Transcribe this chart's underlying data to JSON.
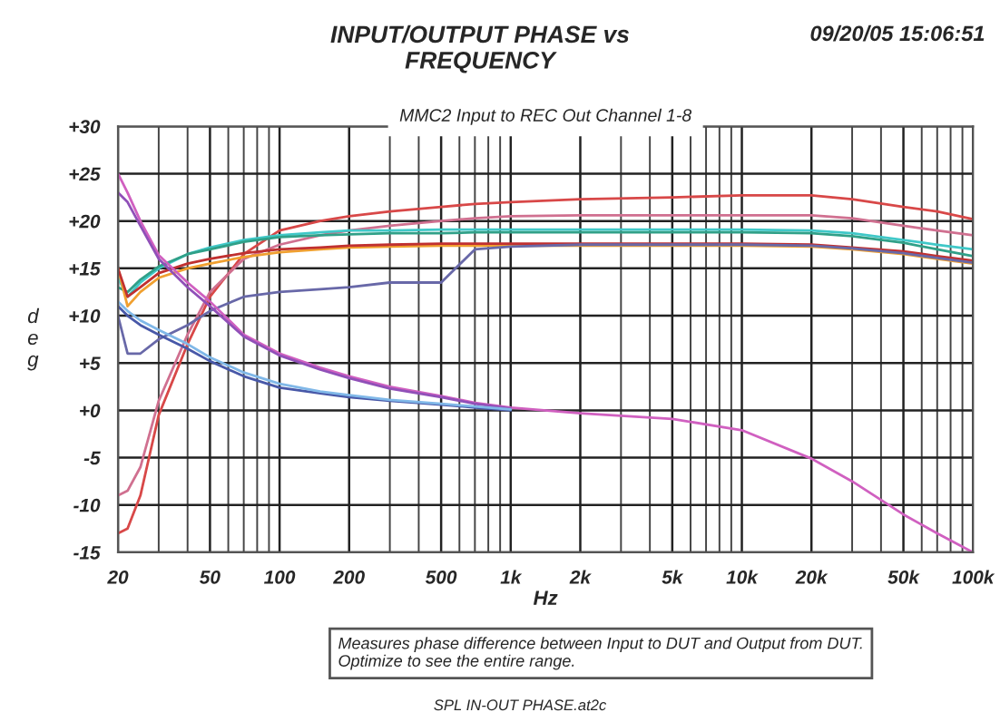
{
  "chart_data": {
    "type": "line",
    "title": "INPUT/OUTPUT PHASE vs\nFREQUENCY",
    "subtitle": "MMC2 Input to REC Out Channel 1-8",
    "xlabel": "Hz",
    "ylabel": "d\ne\ng",
    "annotations": [
      "09/20/05 15:06:51",
      "Measures phase difference between Input to DUT and Output from DUT.\nOptimize to see the entire range.",
      "SPL IN-OUT PHASE.at2c"
    ],
    "x": [
      20,
      22,
      25,
      30,
      40,
      50,
      70,
      100,
      150,
      200,
      300,
      500,
      700,
      1000,
      2000,
      5000,
      10000,
      20000,
      30000,
      50000,
      70000,
      100000
    ],
    "log": "x",
    "xlim": [
      20,
      100000
    ],
    "xticks": [
      20,
      50,
      100,
      200,
      500,
      {
        "value": 1000,
        "label": "1k"
      },
      {
        "value": 2000,
        "label": "2k"
      },
      {
        "value": 5000,
        "label": "5k"
      },
      {
        "value": 10000,
        "label": "10k"
      },
      {
        "value": 20000,
        "label": "20k"
      },
      {
        "value": 50000,
        "label": "50k"
      },
      {
        "value": 100000,
        "label": "100k"
      }
    ],
    "ylim": [
      -15,
      30
    ],
    "yticks": [
      -15,
      -10,
      -5,
      {
        "value": 0,
        "label": "+0"
      },
      {
        "value": 5,
        "label": "+5"
      },
      {
        "value": 10,
        "label": "+10"
      },
      {
        "value": 15,
        "label": "+15"
      },
      {
        "value": 20,
        "label": "+20"
      },
      {
        "value": 25,
        "label": "+25"
      },
      {
        "value": 30,
        "label": "+30"
      }
    ],
    "grid": true,
    "legend": false,
    "series": [
      {
        "color": "#d84848",
        "values": [
          -13,
          -12.5,
          -9,
          -0.5,
          7,
          12,
          16.5,
          19,
          20,
          20.5,
          21,
          21.5,
          21.8,
          22,
          22.3,
          22.5,
          22.7,
          22.7,
          22.3,
          21.5,
          21,
          20.2
        ]
      },
      {
        "color": "#d07090",
        "values": [
          -9,
          -8.5,
          -6,
          1,
          8,
          12.5,
          16,
          17.5,
          18.5,
          19,
          19.5,
          20,
          20.3,
          20.5,
          20.6,
          20.6,
          20.6,
          20.6,
          20.3,
          19.5,
          19,
          18.5
        ]
      },
      {
        "color": "#40c8c8",
        "values": [
          14,
          12,
          13.5,
          15,
          16.5,
          17.2,
          18,
          18.5,
          18.8,
          19,
          19,
          19.1,
          19.1,
          19.1,
          19.1,
          19.1,
          19.1,
          19,
          18.7,
          18,
          17.5,
          17
        ]
      },
      {
        "color": "#30a088",
        "values": [
          13,
          12.5,
          13.8,
          15.2,
          16.5,
          17,
          17.8,
          18.3,
          18.5,
          18.6,
          18.7,
          18.7,
          18.8,
          18.8,
          18.8,
          18.8,
          18.8,
          18.7,
          18.4,
          17.7,
          17,
          16.3
        ]
      },
      {
        "color": "#f0a030",
        "values": [
          15,
          11,
          12.5,
          14,
          15,
          15.5,
          16.2,
          16.7,
          17,
          17.2,
          17.3,
          17.4,
          17.4,
          17.4,
          17.4,
          17.4,
          17.4,
          17.3,
          17,
          16.5,
          16,
          15.5
        ]
      },
      {
        "color": "#c03030",
        "values": [
          15,
          12,
          13,
          14.5,
          15.5,
          16,
          16.6,
          17,
          17.2,
          17.4,
          17.5,
          17.6,
          17.6,
          17.6,
          17.6,
          17.6,
          17.6,
          17.5,
          17.2,
          16.8,
          16.3,
          15.8
        ]
      },
      {
        "color": "#6868a8",
        "values": [
          10,
          6,
          6,
          7.5,
          9,
          10.5,
          12,
          12.5,
          12.8,
          13,
          13.5,
          13.5,
          17,
          17.3,
          17.5,
          17.5,
          17.5,
          17.4,
          17.1,
          16.6,
          16.1,
          15.6
        ]
      },
      {
        "color": "#d060c0",
        "values": [
          25,
          23,
          20,
          16.4,
          13.5,
          11.5,
          8,
          6,
          4.5,
          3.6,
          2.5,
          1.5,
          0.8,
          0.3,
          -0.3,
          -0.9,
          -2.1,
          -5.1,
          -7.5,
          -11,
          -13,
          -15
        ]
      },
      {
        "color": "#9050b8",
        "values": [
          23,
          22,
          19.5,
          16,
          13,
          11,
          7.8,
          5.8,
          4.3,
          3.4,
          2.3,
          1.4,
          0.7,
          0.2,
          null,
          null,
          null,
          null,
          null,
          null,
          null,
          null
        ]
      },
      {
        "color": "#4858a8",
        "values": [
          11,
          10,
          9,
          8,
          6.5,
          5.2,
          3.6,
          2.4,
          1.8,
          1.4,
          1,
          0.6,
          0.3,
          0,
          null,
          null,
          null,
          null,
          null,
          null,
          null,
          null
        ]
      },
      {
        "color": "#80b8e8",
        "values": [
          11.5,
          10.5,
          9.5,
          8.5,
          7,
          5.6,
          4,
          2.8,
          2,
          1.6,
          1.1,
          0.7,
          0.4,
          0.1,
          null,
          null,
          null,
          null,
          null,
          null,
          null,
          null
        ]
      }
    ]
  }
}
